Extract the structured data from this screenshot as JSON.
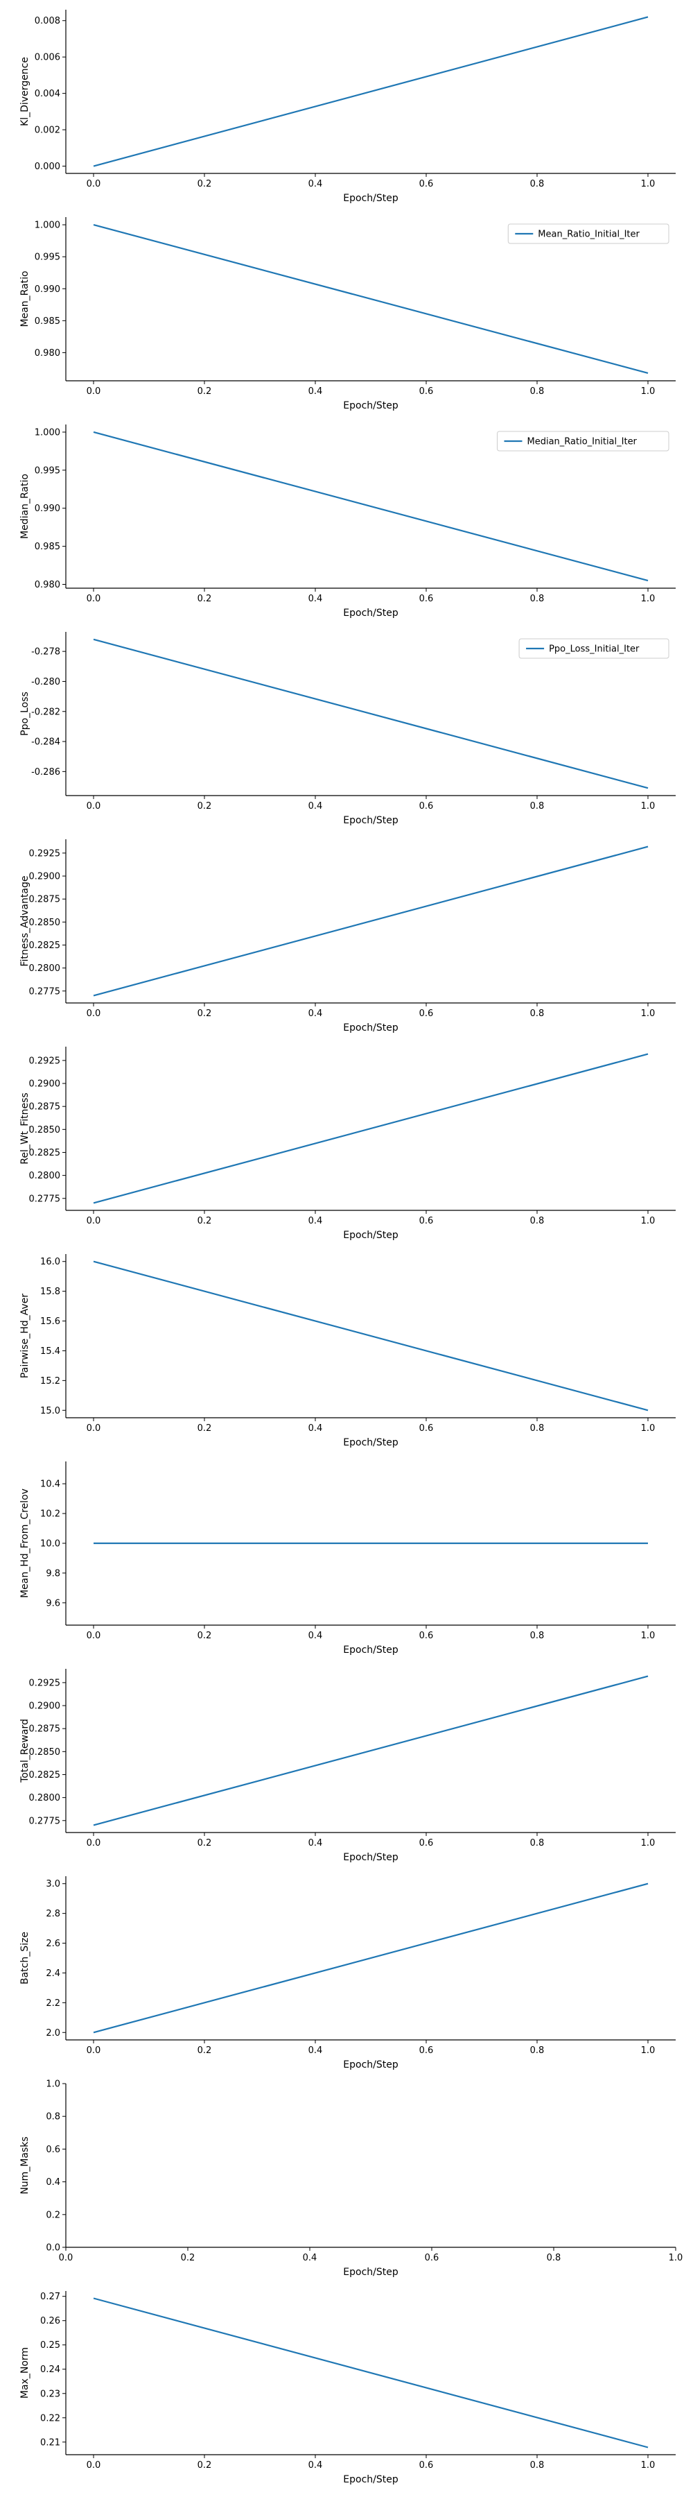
{
  "colors": {
    "line": "#1f77b4",
    "axis": "#000000",
    "background": "#ffffff"
  },
  "chart_data": [
    {
      "type": "line",
      "xlabel": "Epoch/Step",
      "ylabel": "Kl_Divergence",
      "x": [
        0.0,
        1.0
      ],
      "y": [
        0.0,
        0.0082
      ],
      "ylim": [
        -0.0004,
        0.0086
      ],
      "xticks": [
        0.0,
        0.2,
        0.4,
        0.6,
        0.8,
        1.0
      ],
      "xtick_labels": [
        "0.0",
        "0.2",
        "0.4",
        "0.6",
        "0.8",
        "1.0"
      ],
      "yticks": [
        0.0,
        0.002,
        0.004,
        0.006,
        0.008
      ],
      "ytick_labels": [
        "0.000",
        "0.002",
        "0.004",
        "0.006",
        "0.008"
      ],
      "legend": null,
      "grid": false
    },
    {
      "type": "line",
      "xlabel": "Epoch/Step",
      "ylabel": "Mean_Ratio",
      "x": [
        0.0,
        1.0
      ],
      "y": [
        1.0,
        0.9768
      ],
      "ylim": [
        0.9756,
        1.0012
      ],
      "xticks": [
        0.0,
        0.2,
        0.4,
        0.6,
        0.8,
        1.0
      ],
      "xtick_labels": [
        "0.0",
        "0.2",
        "0.4",
        "0.6",
        "0.8",
        "1.0"
      ],
      "yticks": [
        0.98,
        0.985,
        0.99,
        0.995,
        1.0
      ],
      "ytick_labels": [
        "0.980",
        "0.985",
        "0.990",
        "0.995",
        "1.000"
      ],
      "legend": "Mean_Ratio_Initial_Iter",
      "legend_position": "upper-right",
      "grid": false
    },
    {
      "type": "line",
      "xlabel": "Epoch/Step",
      "ylabel": "Median_Ratio",
      "x": [
        0.0,
        1.0
      ],
      "y": [
        1.0,
        0.9805
      ],
      "ylim": [
        0.9795,
        1.001
      ],
      "xticks": [
        0.0,
        0.2,
        0.4,
        0.6,
        0.8,
        1.0
      ],
      "xtick_labels": [
        "0.0",
        "0.2",
        "0.4",
        "0.6",
        "0.8",
        "1.0"
      ],
      "yticks": [
        0.98,
        0.985,
        0.99,
        0.995,
        1.0
      ],
      "ytick_labels": [
        "0.980",
        "0.985",
        "0.990",
        "0.995",
        "1.000"
      ],
      "legend": "Median_Ratio_Initial_Iter",
      "legend_position": "upper-right",
      "grid": false
    },
    {
      "type": "line",
      "xlabel": "Epoch/Step",
      "ylabel": "Ppo_Loss",
      "x": [
        0.0,
        1.0
      ],
      "y": [
        -0.2772,
        -0.2871
      ],
      "ylim": [
        -0.2876,
        -0.2767
      ],
      "xticks": [
        0.0,
        0.2,
        0.4,
        0.6,
        0.8,
        1.0
      ],
      "xtick_labels": [
        "0.0",
        "0.2",
        "0.4",
        "0.6",
        "0.8",
        "1.0"
      ],
      "yticks": [
        -0.278,
        -0.28,
        -0.282,
        -0.284,
        -0.286
      ],
      "ytick_labels": [
        "-0.278",
        "-0.280",
        "-0.282",
        "-0.284",
        "-0.286"
      ],
      "legend": "Ppo_Loss_Initial_Iter",
      "legend_position": "upper-right",
      "grid": false
    },
    {
      "type": "line",
      "xlabel": "Epoch/Step",
      "ylabel": "Fitness_Advantage",
      "x": [
        0.0,
        1.0
      ],
      "y": [
        0.277,
        0.2932
      ],
      "ylim": [
        0.2762,
        0.294
      ],
      "xticks": [
        0.0,
        0.2,
        0.4,
        0.6,
        0.8,
        1.0
      ],
      "xtick_labels": [
        "0.0",
        "0.2",
        "0.4",
        "0.6",
        "0.8",
        "1.0"
      ],
      "yticks": [
        0.2775,
        0.28,
        0.2825,
        0.285,
        0.2875,
        0.29,
        0.2925
      ],
      "ytick_labels": [
        "0.2775",
        "0.2800",
        "0.2825",
        "0.2850",
        "0.2875",
        "0.2900",
        "0.2925"
      ],
      "legend": null,
      "grid": false
    },
    {
      "type": "line",
      "xlabel": "Epoch/Step",
      "ylabel": "Rel_Wt_Fitness",
      "x": [
        0.0,
        1.0
      ],
      "y": [
        0.277,
        0.2932
      ],
      "ylim": [
        0.2762,
        0.294
      ],
      "xticks": [
        0.0,
        0.2,
        0.4,
        0.6,
        0.8,
        1.0
      ],
      "xtick_labels": [
        "0.0",
        "0.2",
        "0.4",
        "0.6",
        "0.8",
        "1.0"
      ],
      "yticks": [
        0.2775,
        0.28,
        0.2825,
        0.285,
        0.2875,
        0.29,
        0.2925
      ],
      "ytick_labels": [
        "0.2775",
        "0.2800",
        "0.2825",
        "0.2850",
        "0.2875",
        "0.2900",
        "0.2925"
      ],
      "legend": null,
      "grid": false
    },
    {
      "type": "line",
      "xlabel": "Epoch/Step",
      "ylabel": "Pairwise_Hd_Aver",
      "x": [
        0.0,
        1.0
      ],
      "y": [
        16.0,
        15.0
      ],
      "ylim": [
        14.95,
        16.05
      ],
      "xticks": [
        0.0,
        0.2,
        0.4,
        0.6,
        0.8,
        1.0
      ],
      "xtick_labels": [
        "0.0",
        "0.2",
        "0.4",
        "0.6",
        "0.8",
        "1.0"
      ],
      "yticks": [
        15.0,
        15.2,
        15.4,
        15.6,
        15.8,
        16.0
      ],
      "ytick_labels": [
        "15.0",
        "15.2",
        "15.4",
        "15.6",
        "15.8",
        "16.0"
      ],
      "legend": null,
      "grid": false
    },
    {
      "type": "line",
      "xlabel": "Epoch/Step",
      "ylabel": "Mean_Hd_From_Crelov",
      "x": [
        0.0,
        1.0
      ],
      "y": [
        10.0,
        10.0
      ],
      "ylim": [
        9.45,
        10.55
      ],
      "xticks": [
        0.0,
        0.2,
        0.4,
        0.6,
        0.8,
        1.0
      ],
      "xtick_labels": [
        "0.0",
        "0.2",
        "0.4",
        "0.6",
        "0.8",
        "1.0"
      ],
      "yticks": [
        9.6,
        9.8,
        10.0,
        10.2,
        10.4
      ],
      "ytick_labels": [
        "9.6",
        "9.8",
        "10.0",
        "10.2",
        "10.4"
      ],
      "legend": null,
      "grid": false
    },
    {
      "type": "line",
      "xlabel": "Epoch/Step",
      "ylabel": "Total_Reward",
      "x": [
        0.0,
        1.0
      ],
      "y": [
        0.277,
        0.2932
      ],
      "ylim": [
        0.2762,
        0.294
      ],
      "xticks": [
        0.0,
        0.2,
        0.4,
        0.6,
        0.8,
        1.0
      ],
      "xtick_labels": [
        "0.0",
        "0.2",
        "0.4",
        "0.6",
        "0.8",
        "1.0"
      ],
      "yticks": [
        0.2775,
        0.28,
        0.2825,
        0.285,
        0.2875,
        0.29,
        0.2925
      ],
      "ytick_labels": [
        "0.2775",
        "0.2800",
        "0.2825",
        "0.2850",
        "0.2875",
        "0.2900",
        "0.2925"
      ],
      "legend": null,
      "grid": false
    },
    {
      "type": "line",
      "xlabel": "Epoch/Step",
      "ylabel": "Batch_Size",
      "x": [
        0.0,
        1.0
      ],
      "y": [
        2.0,
        3.0
      ],
      "ylim": [
        1.95,
        3.05
      ],
      "xticks": [
        0.0,
        0.2,
        0.4,
        0.6,
        0.8,
        1.0
      ],
      "xtick_labels": [
        "0.0",
        "0.2",
        "0.4",
        "0.6",
        "0.8",
        "1.0"
      ],
      "yticks": [
        2.0,
        2.2,
        2.4,
        2.6,
        2.8,
        3.0
      ],
      "ytick_labels": [
        "2.0",
        "2.2",
        "2.4",
        "2.6",
        "2.8",
        "3.0"
      ],
      "legend": null,
      "grid": false
    },
    {
      "type": "line",
      "xlabel": "Epoch/Step",
      "ylabel": "Num_Masks",
      "x": [],
      "y": [],
      "ylim": [
        0.0,
        1.0
      ],
      "xlim": [
        0.0,
        1.0
      ],
      "xticks": [
        0.0,
        0.2,
        0.4,
        0.6,
        0.8,
        1.0
      ],
      "xtick_labels": [
        "0.0",
        "0.2",
        "0.4",
        "0.6",
        "0.8",
        "1.0"
      ],
      "yticks": [
        0.0,
        0.2,
        0.4,
        0.6,
        0.8,
        1.0
      ],
      "ytick_labels": [
        "0.0",
        "0.2",
        "0.4",
        "0.6",
        "0.8",
        "1.0"
      ],
      "legend": null,
      "grid": false,
      "empty": true
    },
    {
      "type": "line",
      "xlabel": "Epoch/Step",
      "ylabel": "Max_Norm",
      "x": [
        0.0,
        1.0
      ],
      "y": [
        0.2692,
        0.2078
      ],
      "ylim": [
        0.2048,
        0.2722
      ],
      "xticks": [
        0.0,
        0.2,
        0.4,
        0.6,
        0.8,
        1.0
      ],
      "xtick_labels": [
        "0.0",
        "0.2",
        "0.4",
        "0.6",
        "0.8",
        "1.0"
      ],
      "yticks": [
        0.21,
        0.22,
        0.23,
        0.24,
        0.25,
        0.26,
        0.27
      ],
      "ytick_labels": [
        "0.21",
        "0.22",
        "0.23",
        "0.24",
        "0.25",
        "0.26",
        "0.27"
      ],
      "legend": null,
      "grid": false
    }
  ]
}
